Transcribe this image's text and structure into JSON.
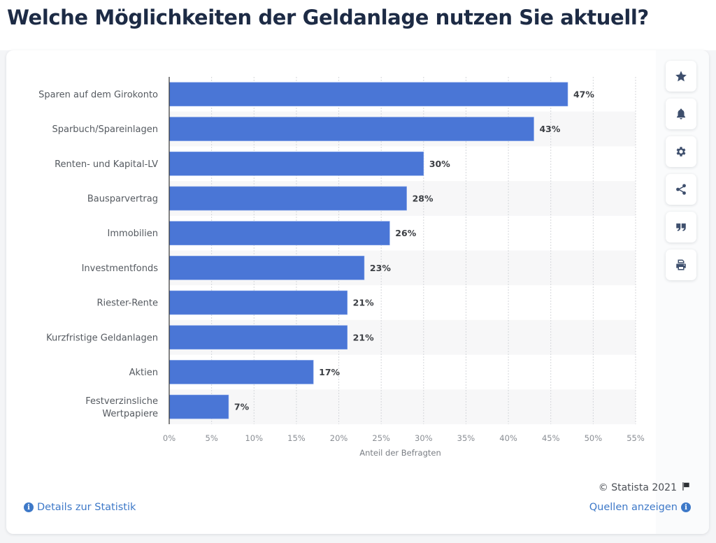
{
  "page": {
    "title": "Welche Möglichkeiten der Geldanlage nutzen Sie aktuell?"
  },
  "toolbar": [
    {
      "name": "favorite",
      "icon": "star-icon"
    },
    {
      "name": "notification",
      "icon": "bell-icon"
    },
    {
      "name": "settings",
      "icon": "gear-icon"
    },
    {
      "name": "share",
      "icon": "share-icon"
    },
    {
      "name": "cite",
      "icon": "quote-icon"
    },
    {
      "name": "print",
      "icon": "print-icon"
    }
  ],
  "footer": {
    "copyright": "© Statista 2021",
    "details_link": "Details zur Statistik",
    "sources_link": "Quellen anzeigen"
  },
  "colors": {
    "bar": "#4a76d6",
    "link": "#3e79c8",
    "title": "#1d2b45"
  },
  "chart_data": {
    "type": "bar",
    "orientation": "horizontal",
    "title": "Welche Möglichkeiten der Geldanlage nutzen Sie aktuell?",
    "xlabel": "Anteil der Befragten",
    "ylabel": "",
    "categories": [
      "Sparen auf dem Girokonto",
      "Sparbuch/Spareinlagen",
      "Renten- und Kapital-LV",
      "Bausparvertrag",
      "Immobilien",
      "Investmentfonds",
      "Riester-Rente",
      "Kurzfristige Geldanlagen",
      "Aktien",
      "Festverzinsliche Wertpapiere"
    ],
    "values": [
      47,
      43,
      30,
      28,
      26,
      23,
      21,
      21,
      17,
      7
    ],
    "value_labels": [
      "47%",
      "43%",
      "30%",
      "28%",
      "26%",
      "23%",
      "21%",
      "21%",
      "17%",
      "7%"
    ],
    "xlim": [
      0,
      55
    ],
    "xticks": [
      0,
      5,
      10,
      15,
      20,
      25,
      30,
      35,
      40,
      45,
      50,
      55
    ],
    "xtick_labels": [
      "0%",
      "5%",
      "10%",
      "15%",
      "20%",
      "25%",
      "30%",
      "35%",
      "40%",
      "45%",
      "50%",
      "55%"
    ],
    "grid": true,
    "legend": "none"
  }
}
